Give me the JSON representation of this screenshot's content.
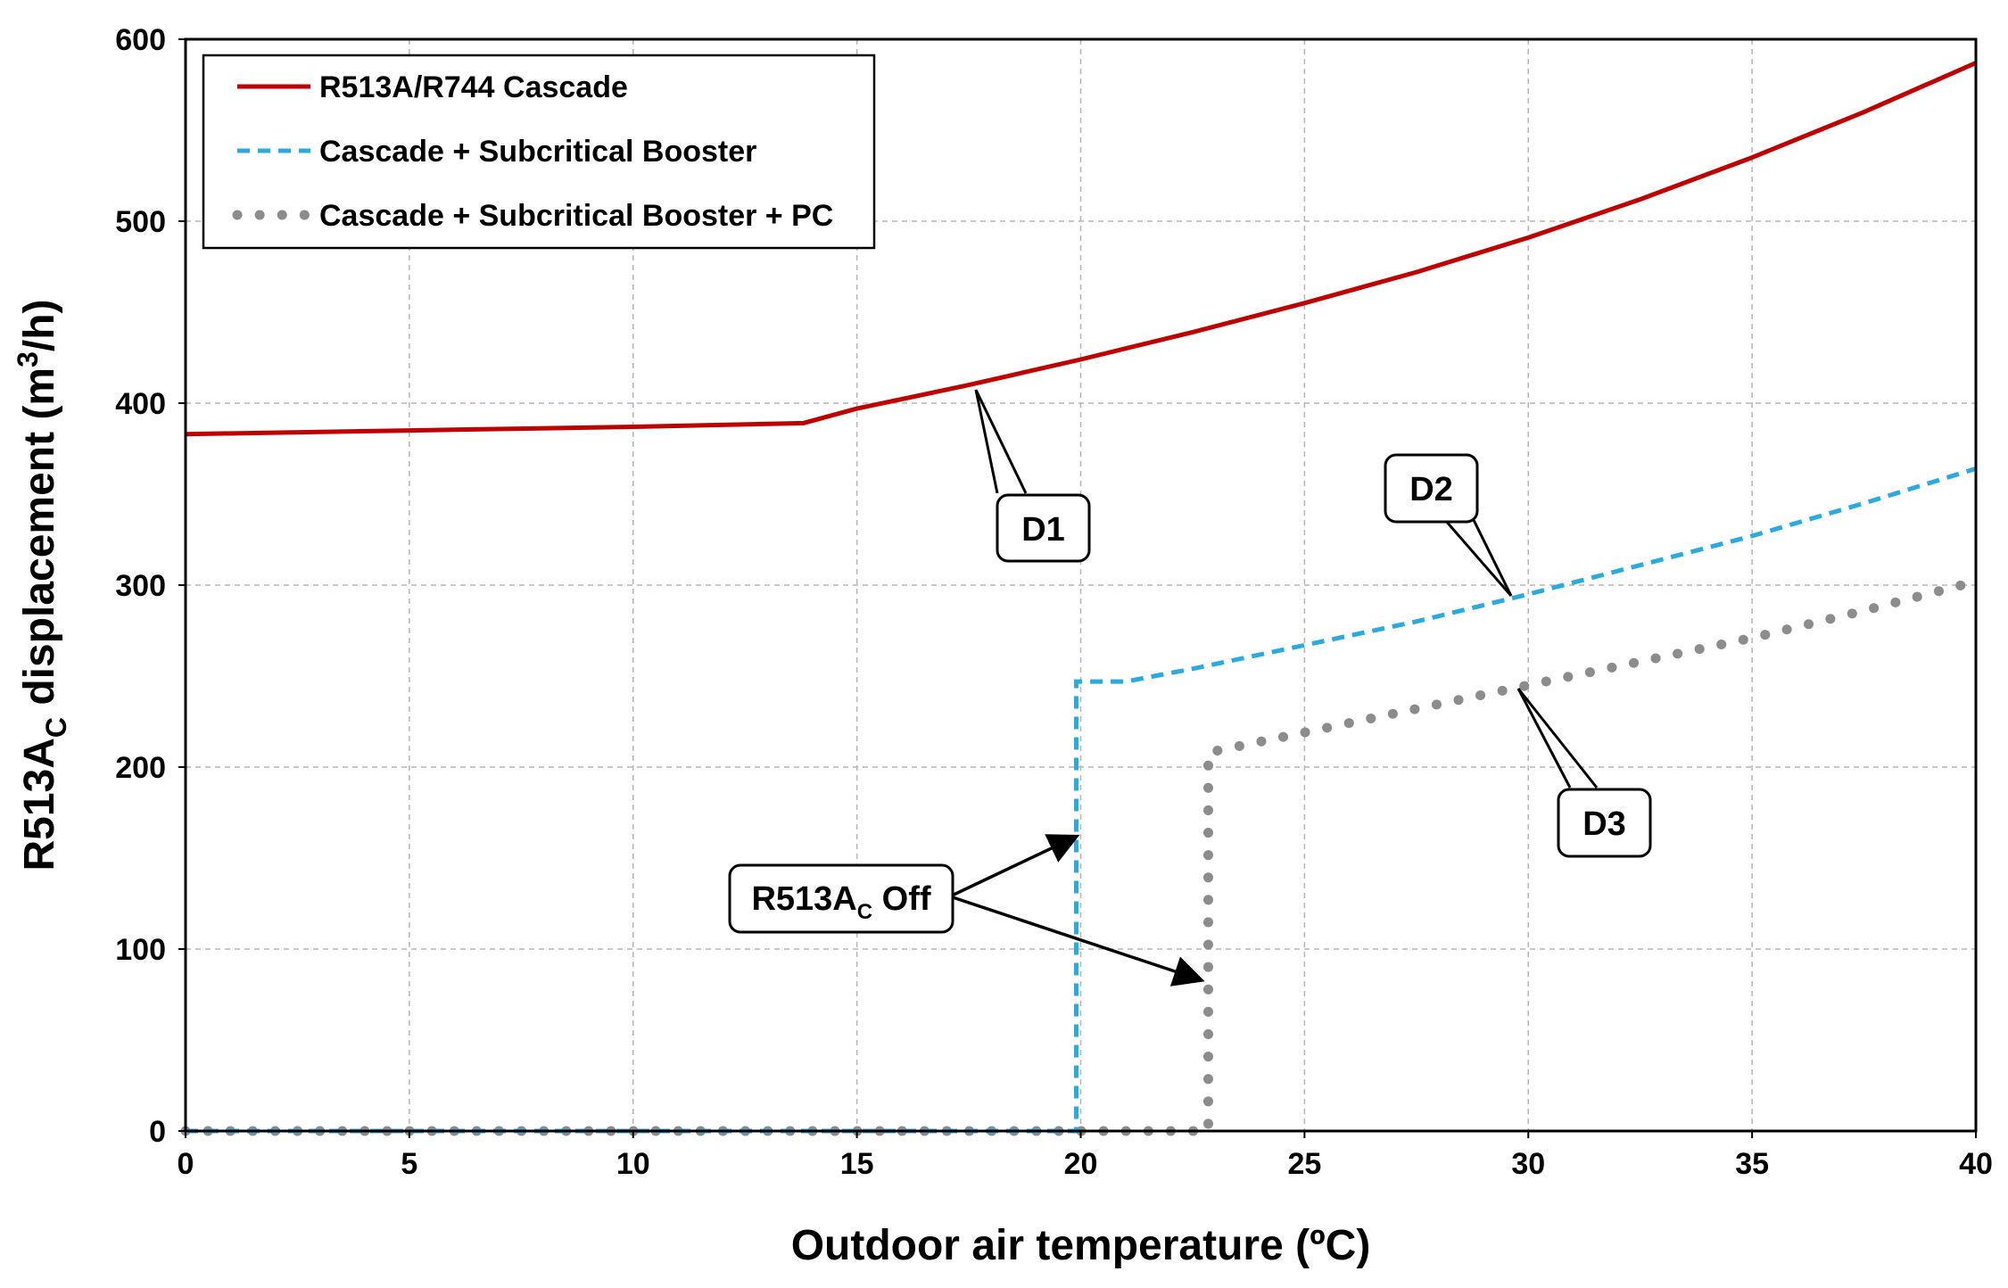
{
  "chart_data": {
    "type": "line",
    "title": "",
    "xlabel": "Outdoor air temperature (ºC)",
    "ylabel_parts": {
      "a": "R513A",
      "sub": "C",
      "b": " displacement (m",
      "sup": "3",
      "c": "/h)"
    },
    "xlim": [
      0,
      40
    ],
    "ylim": [
      0,
      600
    ],
    "x_ticks": [
      0,
      5,
      10,
      15,
      20,
      25,
      30,
      35,
      40
    ],
    "y_ticks": [
      0,
      100,
      200,
      300,
      400,
      500,
      600
    ],
    "grid": true,
    "legend_position": "top-left",
    "colors": {
      "red": "#c00000",
      "blue": "#29abe2",
      "gray": "#8c8c8c"
    },
    "series": [
      {
        "name": "R513A/R744 Cascade",
        "style": "solid",
        "color": "#c00000",
        "x": [
          0,
          5,
          10,
          13.8,
          15,
          17.5,
          20,
          22.5,
          25,
          27.5,
          30,
          32.5,
          35,
          37.5,
          40
        ],
        "y": [
          383,
          385,
          387,
          389,
          397,
          410,
          424,
          439,
          455,
          472,
          491,
          512,
          535,
          560,
          587
        ]
      },
      {
        "name": "Cascade + Subcritical Booster",
        "style": "dashed",
        "color": "#29abe2",
        "x": [
          0,
          5,
          10,
          15,
          19.9,
          19.9,
          21,
          22.5,
          25,
          27.5,
          30,
          32.5,
          35,
          37.5,
          40
        ],
        "y": [
          0,
          0,
          0,
          0,
          0,
          247,
          247,
          254,
          267,
          280,
          295,
          311,
          327,
          345,
          364
        ]
      },
      {
        "name": "Cascade + Subcritical Booster + PC",
        "style": "dotted",
        "color": "#8c8c8c",
        "x": [
          0,
          5,
          10,
          15,
          20,
          22.85,
          22.85,
          25,
          27.5,
          30,
          32.5,
          35,
          37.5,
          40
        ],
        "y": [
          0,
          0,
          0,
          0,
          0,
          0,
          208,
          219,
          232,
          245,
          258,
          271,
          286,
          302
        ]
      }
    ],
    "annotations": [
      {
        "label": "D1",
        "pointer_x": 17.4,
        "pointer_y": 410
      },
      {
        "label": "D2",
        "pointer_x": 29.5,
        "pointer_y": 293
      },
      {
        "label": "D3",
        "pointer_x": 29.7,
        "pointer_y": 243
      },
      {
        "label_a": "R513A",
        "label_sub": "C",
        "label_b": " Off",
        "pointers": [
          {
            "x": 19.8,
            "y": 162
          },
          {
            "x": 22.7,
            "y": 83
          }
        ]
      }
    ]
  }
}
